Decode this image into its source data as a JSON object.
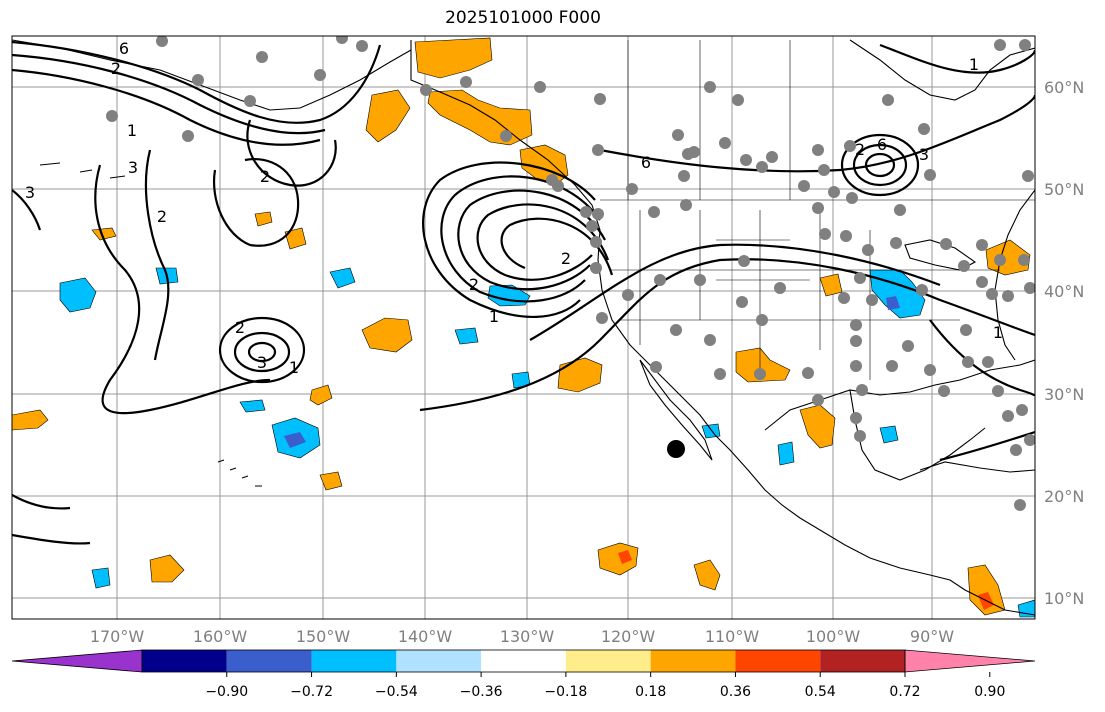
{
  "title": "2025101000 F000",
  "map": {
    "lat_labels": [
      "60°N",
      "50°N",
      "40°N",
      "30°N",
      "20°N",
      "10°N"
    ],
    "lon_labels": [
      "170°W",
      "160°W",
      "150°W",
      "140°W",
      "130°W",
      "120°W",
      "110°W",
      "100°W",
      "90°W"
    ],
    "contour_labels": [
      "6",
      "2",
      "1",
      "3",
      "2",
      "2",
      "3",
      "1",
      "2",
      "3",
      "2",
      "2",
      "1",
      "6",
      "2",
      "6",
      "1",
      "3",
      "1"
    ],
    "gridline_color": "#808080",
    "contour_color": "#000000",
    "station_color": "#808080"
  },
  "colorbar": {
    "ticks": [
      "−0.90",
      "−0.72",
      "−0.54",
      "−0.36",
      "−0.18",
      "0.18",
      "0.36",
      "0.54",
      "0.72",
      "0.90"
    ],
    "colors": [
      "#9a32cd",
      "#00008b",
      "#3a5fcd",
      "#00bfff",
      "#b0e2ff",
      "#ffffff",
      "#ffec8b",
      "#ffa500",
      "#ff4500",
      "#b22222",
      "#ff82ab"
    ]
  }
}
